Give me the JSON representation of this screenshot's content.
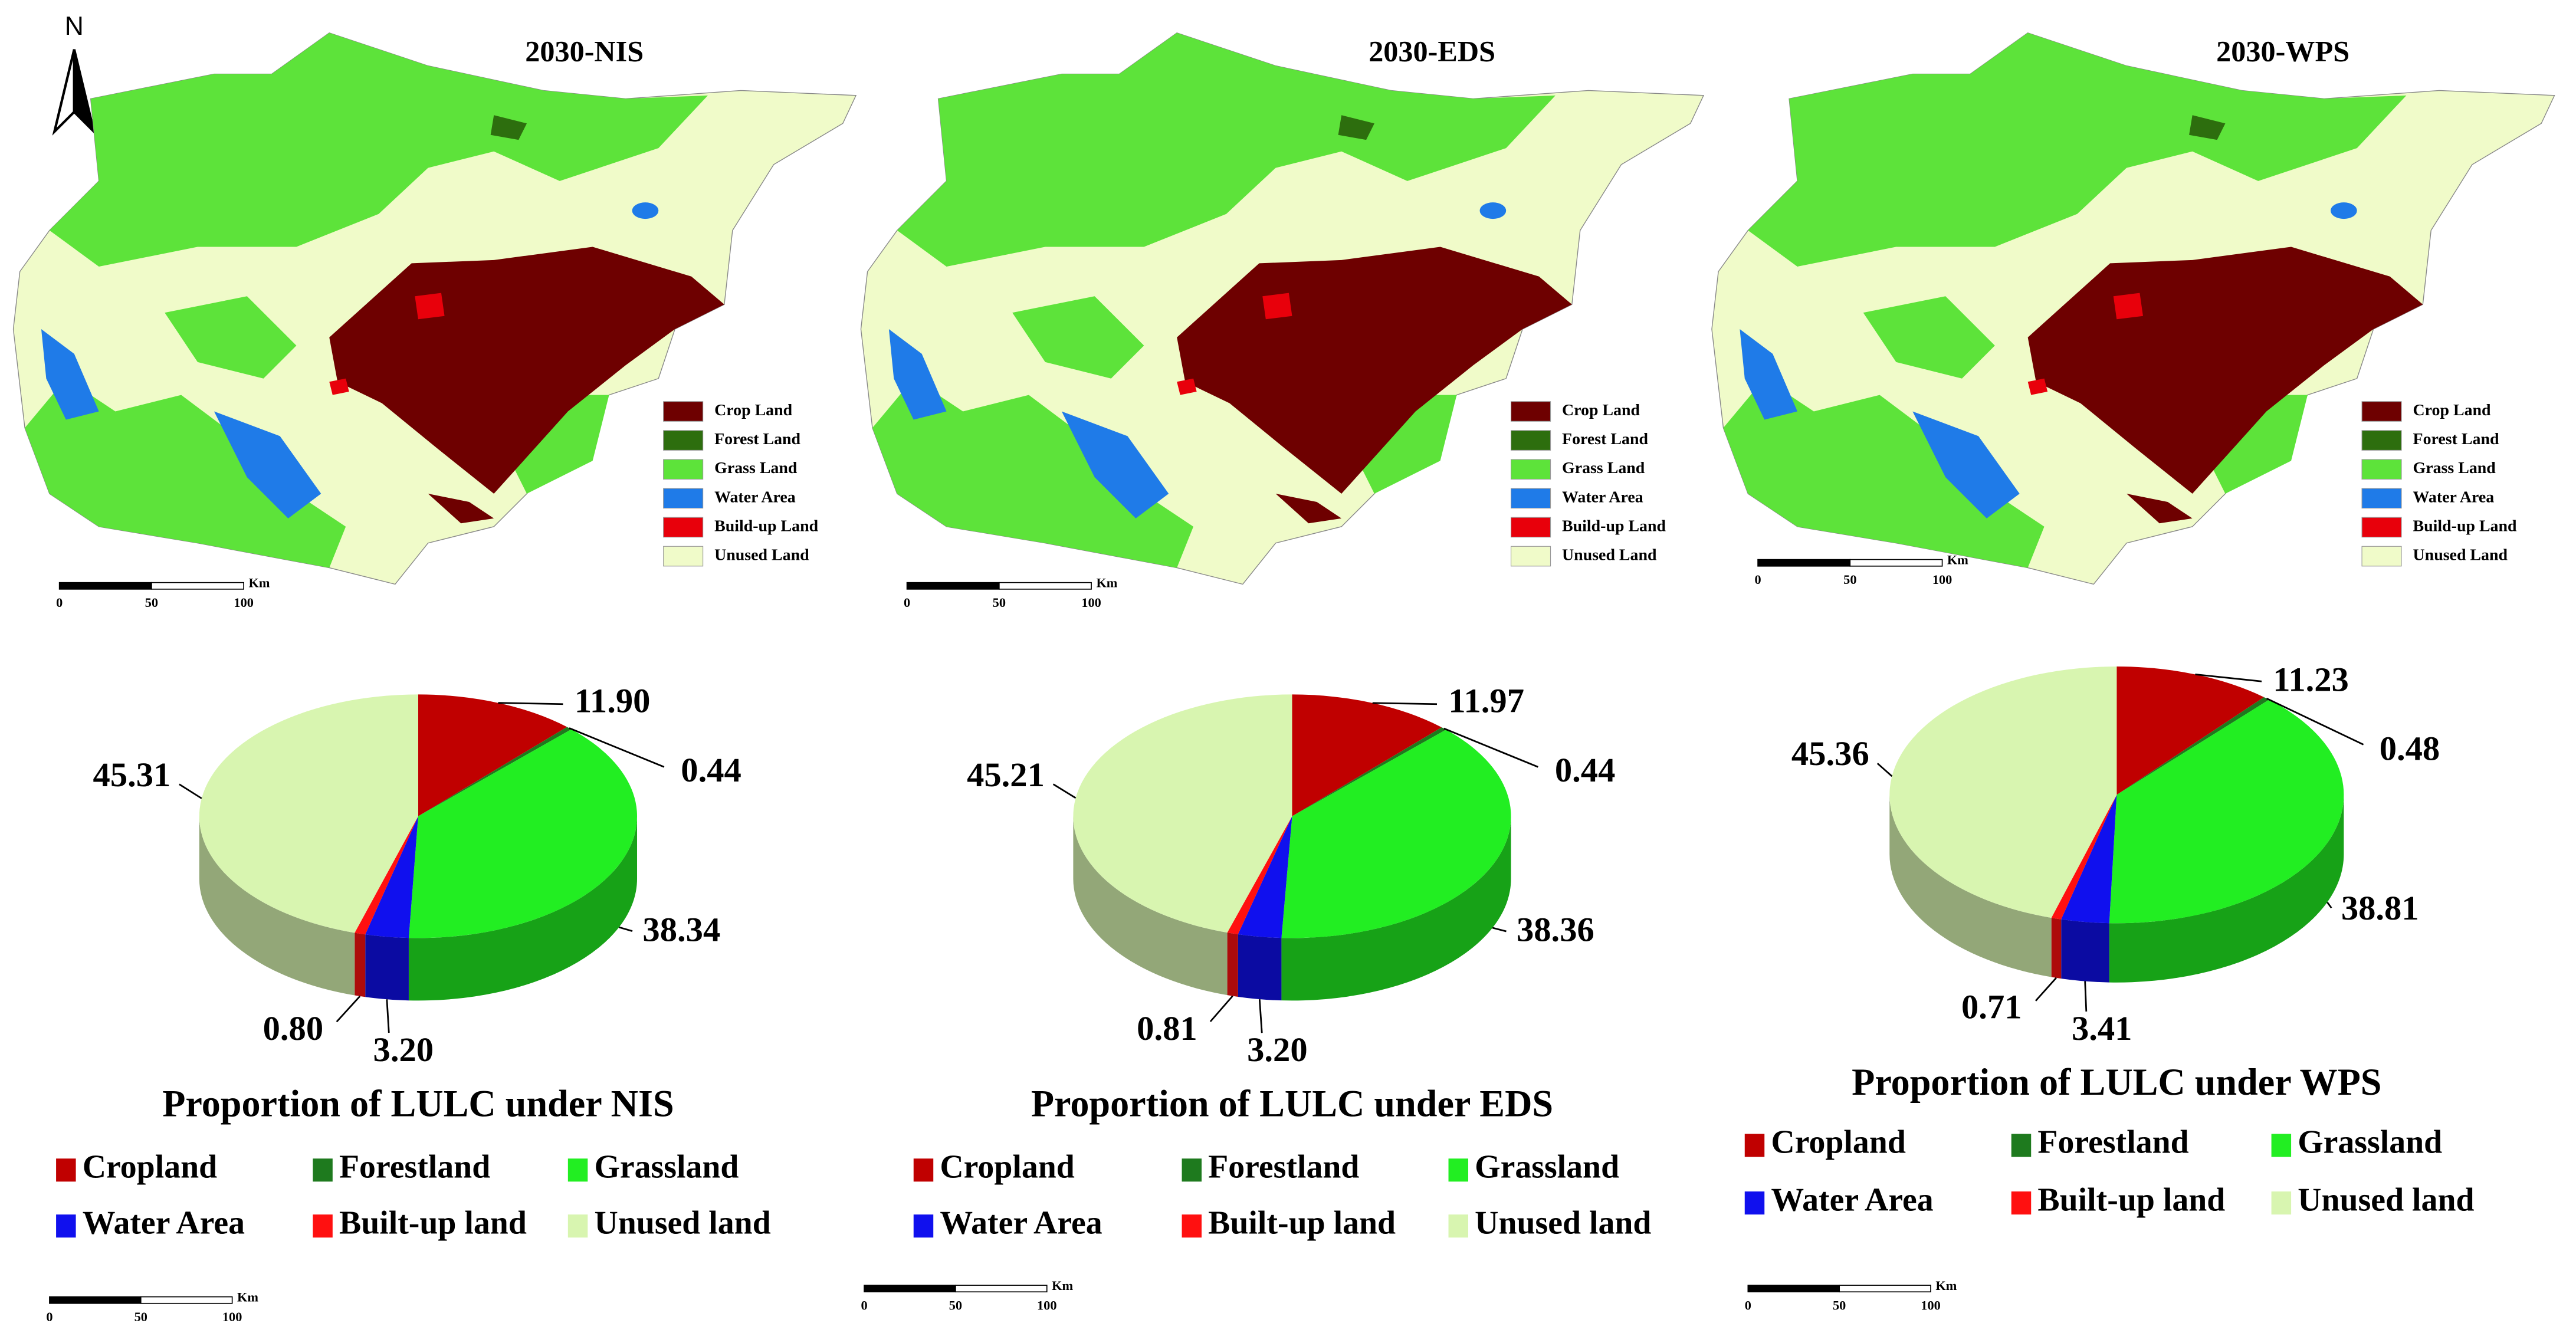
{
  "north": "N",
  "maps": [
    {
      "title": "2030-NIS",
      "scale": [
        0,
        50,
        100
      ],
      "unit": "Km",
      "legend": [
        {
          "label": "Crop Land",
          "color": "#6e0000"
        },
        {
          "label": "Forest Land",
          "color": "#2d6e0e"
        },
        {
          "label": "Grass Land",
          "color": "#5de33a"
        },
        {
          "label": "Water Area",
          "color": "#1f7be8"
        },
        {
          "label": "Build-up Land",
          "color": "#e8000b"
        },
        {
          "label": "Unused Land",
          "color": "#f0fbc9"
        }
      ]
    },
    {
      "title": "2030-EDS",
      "scale": [
        0,
        50,
        100
      ],
      "unit": "Km",
      "legend": [
        {
          "label": "Crop Land",
          "color": "#6e0000"
        },
        {
          "label": "Forest Land",
          "color": "#2d6e0e"
        },
        {
          "label": "Grass Land",
          "color": "#5de33a"
        },
        {
          "label": "Water Area",
          "color": "#1f7be8"
        },
        {
          "label": "Build-up Land",
          "color": "#e8000b"
        },
        {
          "label": "Unused Land",
          "color": "#f0fbc9"
        }
      ]
    },
    {
      "title": "2030-WPS",
      "scale": [
        0,
        50,
        100
      ],
      "unit": "Km",
      "legend": [
        {
          "label": "Crop Land",
          "color": "#6e0000"
        },
        {
          "label": "Forest Land",
          "color": "#2d6e0e"
        },
        {
          "label": "Grass Land",
          "color": "#5de33a"
        },
        {
          "label": "Water Area",
          "color": "#1f7be8"
        },
        {
          "label": "Build-up Land",
          "color": "#e8000b"
        },
        {
          "label": "Unused Land",
          "color": "#f0fbc9"
        }
      ]
    }
  ],
  "chart_data": [
    {
      "type": "pie",
      "title": "Proportion of LULC under NIS",
      "categories": [
        "Cropland",
        "Forestland",
        "Grassland",
        "Water Area",
        "Built-up land",
        "Unused land"
      ],
      "values": [
        11.9,
        0.44,
        38.34,
        3.2,
        0.8,
        45.31
      ],
      "value_labels": [
        "11.90",
        "0.44",
        "38.34",
        "3.20",
        "0.80",
        "45.31"
      ],
      "colors": [
        "#c00000",
        "#1e7a1e",
        "#22ee22",
        "#1010ee",
        "#ff1010",
        "#d8f5b0"
      ]
    },
    {
      "type": "pie",
      "title": "Proportion of LULC under EDS",
      "categories": [
        "Cropland",
        "Forestland",
        "Grassland",
        "Water Area",
        "Built-up land",
        "Unused land"
      ],
      "values": [
        11.97,
        0.44,
        38.36,
        3.2,
        0.81,
        45.21
      ],
      "value_labels": [
        "11.97",
        "0.44",
        "38.36",
        "3.20",
        "0.81",
        "45.21"
      ],
      "colors": [
        "#c00000",
        "#1e7a1e",
        "#22ee22",
        "#1010ee",
        "#ff1010",
        "#d8f5b0"
      ]
    },
    {
      "type": "pie",
      "title": "Proportion of LULC under WPS",
      "categories": [
        "Cropland",
        "Forestland",
        "Grassland",
        "Water Area",
        "Built-up land",
        "Unused land"
      ],
      "values": [
        11.23,
        0.48,
        38.81,
        3.41,
        0.71,
        45.36
      ],
      "value_labels": [
        "11.23",
        "0.48",
        "38.81",
        "3.41",
        "0.71",
        "45.36"
      ],
      "colors": [
        "#c00000",
        "#1e7a1e",
        "#22ee22",
        "#1010ee",
        "#ff1010",
        "#d8f5b0"
      ]
    }
  ],
  "scale_bars": [
    {
      "ticks": [
        0,
        50,
        100
      ],
      "unit": "Km"
    },
    {
      "ticks": [
        0,
        50,
        100
      ],
      "unit": "Km"
    },
    {
      "ticks": [
        0,
        50,
        100
      ],
      "unit": "Km"
    }
  ]
}
